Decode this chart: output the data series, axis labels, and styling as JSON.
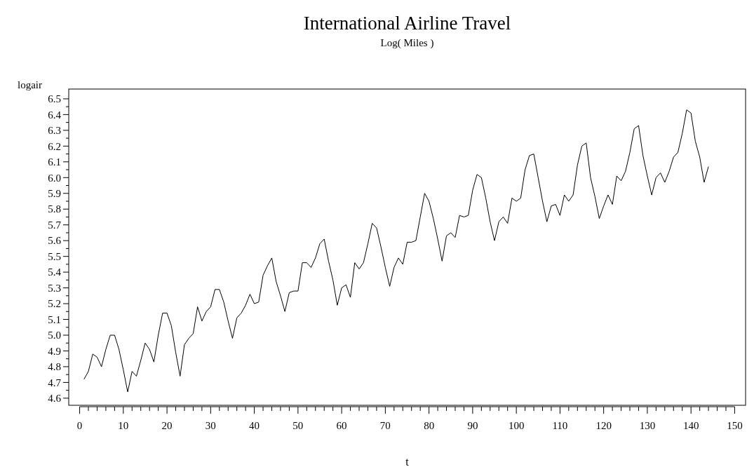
{
  "chart_data": {
    "type": "line",
    "title": "International Airline Travel",
    "subtitle": "Log( Miles )",
    "xlabel": "t",
    "ylabel": "logair",
    "xlim": [
      -2.5,
      152.5
    ],
    "ylim": [
      4.555,
      6.562
    ],
    "xticks": [
      0,
      {
        "value": 2,
        "label": null
      },
      {
        "value": 4,
        "label": null
      },
      {
        "value": 6,
        "label": null
      },
      {
        "value": 8,
        "label": null
      },
      10,
      {
        "value": 12,
        "label": null
      },
      {
        "value": 14,
        "label": null
      },
      {
        "value": 16,
        "label": null
      },
      {
        "value": 18,
        "label": null
      },
      20,
      {
        "value": 22,
        "label": null
      },
      {
        "value": 24,
        "label": null
      },
      {
        "value": 26,
        "label": null
      },
      {
        "value": 28,
        "label": null
      },
      30,
      {
        "value": 32,
        "label": null
      },
      {
        "value": 34,
        "label": null
      },
      {
        "value": 36,
        "label": null
      },
      {
        "value": 38,
        "label": null
      },
      40,
      {
        "value": 42,
        "label": null
      },
      {
        "value": 44,
        "label": null
      },
      {
        "value": 46,
        "label": null
      },
      {
        "value": 48,
        "label": null
      },
      50,
      {
        "value": 52,
        "label": null
      },
      {
        "value": 54,
        "label": null
      },
      {
        "value": 56,
        "label": null
      },
      {
        "value": 58,
        "label": null
      },
      60,
      {
        "value": 62,
        "label": null
      },
      {
        "value": 64,
        "label": null
      },
      {
        "value": 66,
        "label": null
      },
      {
        "value": 68,
        "label": null
      },
      70,
      {
        "value": 72,
        "label": null
      },
      {
        "value": 74,
        "label": null
      },
      {
        "value": 76,
        "label": null
      },
      {
        "value": 78,
        "label": null
      },
      80,
      {
        "value": 82,
        "label": null
      },
      {
        "value": 84,
        "label": null
      },
      {
        "value": 86,
        "label": null
      },
      {
        "value": 88,
        "label": null
      },
      90,
      {
        "value": 92,
        "label": null
      },
      {
        "value": 94,
        "label": null
      },
      {
        "value": 96,
        "label": null
      },
      {
        "value": 98,
        "label": null
      },
      100,
      {
        "value": 102,
        "label": null
      },
      {
        "value": 104,
        "label": null
      },
      {
        "value": 106,
        "label": null
      },
      {
        "value": 108,
        "label": null
      },
      110,
      {
        "value": 112,
        "label": null
      },
      {
        "value": 114,
        "label": null
      },
      {
        "value": 116,
        "label": null
      },
      {
        "value": 118,
        "label": null
      },
      120,
      {
        "value": 122,
        "label": null
      },
      {
        "value": 124,
        "label": null
      },
      {
        "value": 126,
        "label": null
      },
      {
        "value": 128,
        "label": null
      },
      130,
      {
        "value": 132,
        "label": null
      },
      {
        "value": 134,
        "label": null
      },
      {
        "value": 136,
        "label": null
      },
      {
        "value": 138,
        "label": null
      },
      140,
      {
        "value": 142,
        "label": null
      },
      {
        "value": 144,
        "label": null
      },
      {
        "value": 146,
        "label": null
      },
      {
        "value": 148,
        "label": null
      },
      150
    ],
    "yticks": [
      4.6,
      {
        "value": 4.65,
        "label": null
      },
      4.7,
      {
        "value": 4.75,
        "label": null
      },
      4.8,
      {
        "value": 4.85,
        "label": null
      },
      4.9,
      {
        "value": 4.95,
        "label": null
      },
      {
        "value": 5,
        "label": "5.0"
      },
      {
        "value": 5.05,
        "label": null
      },
      5.1,
      {
        "value": 5.15,
        "label": null
      },
      5.2,
      {
        "value": 5.25,
        "label": null
      },
      5.3,
      {
        "value": 5.35,
        "label": null
      },
      5.4,
      {
        "value": 5.45,
        "label": null
      },
      5.5,
      {
        "value": 5.55,
        "label": null
      },
      5.6,
      {
        "value": 5.65,
        "label": null
      },
      5.7,
      {
        "value": 5.75,
        "label": null
      },
      5.8,
      {
        "value": 5.85,
        "label": null
      },
      5.9,
      {
        "value": 5.95,
        "label": null
      },
      {
        "value": 6,
        "label": "6.0"
      },
      {
        "value": 6.05,
        "label": null
      },
      6.1,
      {
        "value": 6.15,
        "label": null
      },
      6.2,
      {
        "value": 6.25,
        "label": null
      },
      6.3,
      {
        "value": 6.35,
        "label": null
      },
      6.4,
      {
        "value": 6.45,
        "label": null
      },
      6.5
    ],
    "series": [
      {
        "color": "#000000",
        "x": [
          1,
          2,
          3,
          4,
          5,
          6,
          7,
          8,
          9,
          10,
          11,
          12,
          13,
          14,
          15,
          16,
          17,
          18,
          19,
          20,
          21,
          22,
          23,
          24,
          25,
          26,
          27,
          28,
          29,
          30,
          31,
          32,
          33,
          34,
          35,
          36,
          37,
          38,
          39,
          40,
          41,
          42,
          43,
          44,
          45,
          46,
          47,
          48,
          49,
          50,
          51,
          52,
          53,
          54,
          55,
          56,
          57,
          58,
          59,
          60,
          61,
          62,
          63,
          64,
          65,
          66,
          67,
          68,
          69,
          70,
          71,
          72,
          73,
          74,
          75,
          76,
          77,
          78,
          79,
          80,
          81,
          82,
          83,
          84,
          85,
          86,
          87,
          88,
          89,
          90,
          91,
          92,
          93,
          94,
          95,
          96,
          97,
          98,
          99,
          100,
          101,
          102,
          103,
          104,
          105,
          106,
          107,
          108,
          109,
          110,
          111,
          112,
          113,
          114,
          115,
          116,
          117,
          118,
          119,
          120,
          121,
          122,
          123,
          124,
          125,
          126,
          127,
          128,
          129,
          130,
          131,
          132,
          133,
          134,
          135,
          136,
          137,
          138,
          139,
          140,
          141,
          142,
          143,
          144
        ],
        "values": [
          4.72,
          4.77,
          4.88,
          4.86,
          4.8,
          4.91,
          5.0,
          5.0,
          4.91,
          4.78,
          4.64,
          4.77,
          4.74,
          4.84,
          4.95,
          4.91,
          4.83,
          5.0,
          5.14,
          5.14,
          5.06,
          4.89,
          4.74,
          4.94,
          4.98,
          5.01,
          5.18,
          5.09,
          5.15,
          5.18,
          5.29,
          5.29,
          5.21,
          5.09,
          4.98,
          5.11,
          5.14,
          5.19,
          5.26,
          5.2,
          5.21,
          5.38,
          5.44,
          5.49,
          5.34,
          5.25,
          5.15,
          5.27,
          5.28,
          5.28,
          5.46,
          5.46,
          5.43,
          5.49,
          5.58,
          5.61,
          5.47,
          5.35,
          5.19,
          5.3,
          5.32,
          5.24,
          5.46,
          5.42,
          5.46,
          5.58,
          5.71,
          5.68,
          5.56,
          5.43,
          5.31,
          5.43,
          5.49,
          5.45,
          5.59,
          5.59,
          5.6,
          5.75,
          5.9,
          5.85,
          5.74,
          5.61,
          5.47,
          5.63,
          5.65,
          5.62,
          5.76,
          5.75,
          5.76,
          5.92,
          6.02,
          6.0,
          5.87,
          5.72,
          5.6,
          5.72,
          5.75,
          5.71,
          5.87,
          5.85,
          5.87,
          6.05,
          6.14,
          6.15,
          6.0,
          5.85,
          5.72,
          5.82,
          5.83,
          5.76,
          5.89,
          5.85,
          5.89,
          6.08,
          6.2,
          6.22,
          6.0,
          5.88,
          5.74,
          5.82,
          5.89,
          5.83,
          6.01,
          5.98,
          6.04,
          6.16,
          6.31,
          6.33,
          6.14,
          6.01,
          5.89,
          6.0,
          6.03,
          5.97,
          6.04,
          6.13,
          6.16,
          6.28,
          6.43,
          6.41,
          6.23,
          6.13,
          5.97,
          6.07
        ]
      }
    ]
  }
}
